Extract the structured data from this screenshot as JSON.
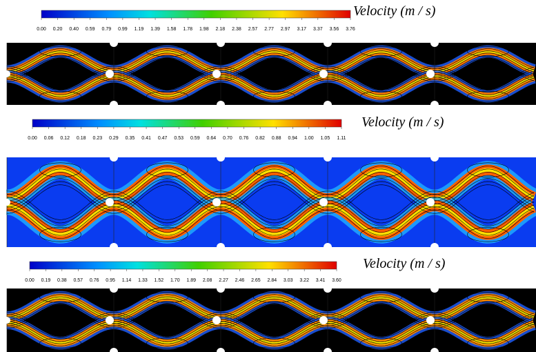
{
  "panels": [
    {
      "label": "Velocity (m / s)",
      "ticks": [
        "0.00",
        "0.20",
        "0.40",
        "0.59",
        "0.79",
        "0.99",
        "1.19",
        "1.39",
        "1.58",
        "1.78",
        "1.98",
        "2.18",
        "2.38",
        "2.57",
        "2.77",
        "2.97",
        "3.17",
        "3.37",
        "3.56",
        "3.76"
      ]
    },
    {
      "label": "Velocity (m / s)",
      "ticks": [
        "0.00",
        "0.06",
        "0.12",
        "0.18",
        "0.23",
        "0.29",
        "0.35",
        "0.41",
        "0.47",
        "0.53",
        "0.59",
        "0.64",
        "0.70",
        "0.76",
        "0.82",
        "0.88",
        "0.94",
        "1.00",
        "1.05",
        "1.11"
      ]
    },
    {
      "label": "Velocity (m / s)",
      "ticks": [
        "0.00",
        "0.19",
        "0.38",
        "0.57",
        "0.76",
        "0.95",
        "1.14",
        "1.33",
        "1.52",
        "1.70",
        "1.89",
        "2.08",
        "2.27",
        "2.46",
        "2.65",
        "2.84",
        "3.03",
        "3.22",
        "3.41",
        "3.60"
      ]
    }
  ]
}
